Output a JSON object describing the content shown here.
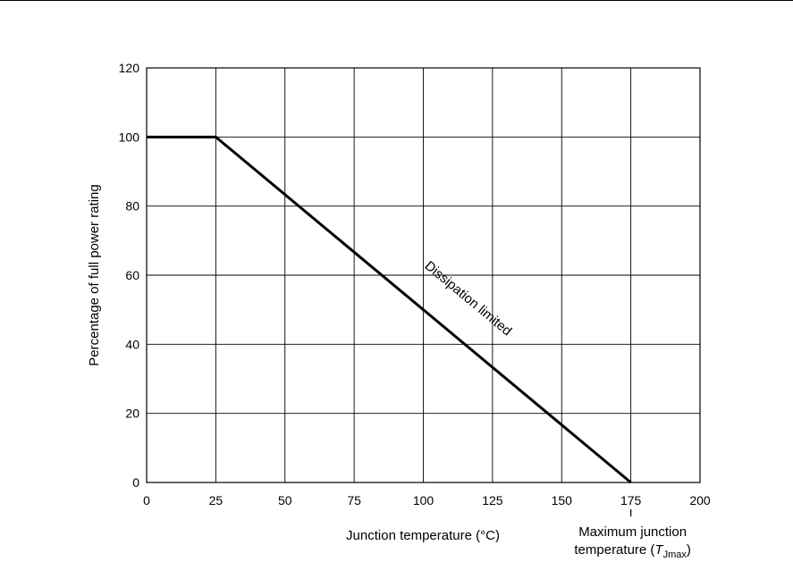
{
  "chart_data": {
    "type": "line",
    "title": "",
    "xlabel": "Junction temperature (°C)",
    "ylabel": "Percentage of full power rating",
    "xlim": [
      0,
      200
    ],
    "ylim": [
      0,
      120
    ],
    "x_ticks": [
      0,
      25,
      50,
      75,
      100,
      125,
      150,
      175,
      200
    ],
    "y_ticks": [
      0,
      20,
      40,
      60,
      80,
      100,
      120
    ],
    "grid": true,
    "series": [
      {
        "x": [
          0,
          25,
          175
        ],
        "y": [
          100,
          100,
          0
        ]
      }
    ],
    "annotations": [
      {
        "text": "Dissipation limited",
        "x": 113,
        "y": 50
      },
      {
        "text_line1": "Maximum junction",
        "text_line2_prefix": "temperature (",
        "symbol": "T",
        "subscript": "Jmax",
        "suffix": ")",
        "x": 175
      }
    ]
  }
}
